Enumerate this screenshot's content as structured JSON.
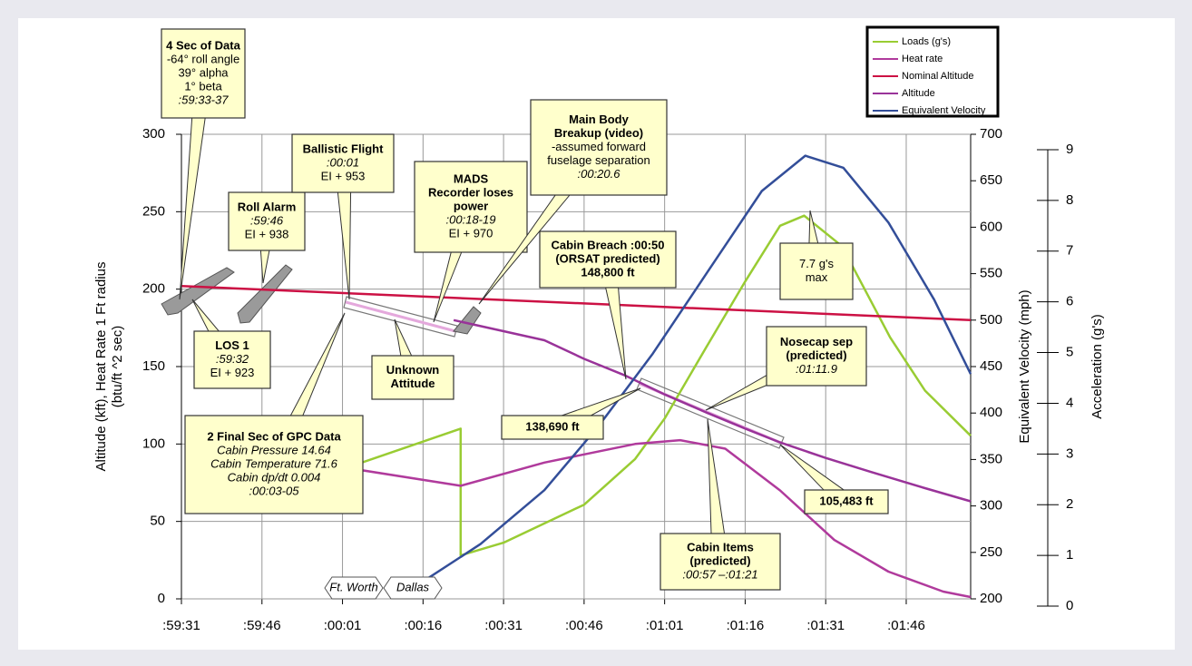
{
  "chart_data": {
    "type": "line",
    "grid": true,
    "legend": "top-right",
    "xlim": [
      0,
      147
    ],
    "xticks": [
      {
        "value": 0,
        "label": ":59:31"
      },
      {
        "value": 15,
        "label": ":59:46"
      },
      {
        "value": 30,
        "label": ":00:01"
      },
      {
        "value": 45,
        "label": ":00:16"
      },
      {
        "value": 60,
        "label": ":00:31"
      },
      {
        "value": 75,
        "label": ":00:46"
      },
      {
        "value": 90,
        "label": ":01:01"
      },
      {
        "value": 105,
        "label": ":01:16"
      },
      {
        "value": 120,
        "label": ":01:31"
      },
      {
        "value": 135,
        "label": ":01:46"
      }
    ],
    "y_label": [
      "Altitude (kft), Heat Rate 1 Ft radius",
      "(btu/ft ^2 sec)"
    ],
    "ylim": [
      0,
      300
    ],
    "yticks": [
      0,
      50,
      100,
      150,
      200,
      250,
      300
    ],
    "y2_label": "Equivalent Velocity (mph)",
    "y2lim": [
      200,
      700
    ],
    "y2ticks": [
      200,
      250,
      300,
      350,
      400,
      450,
      500,
      550,
      600,
      650,
      700
    ],
    "y3_label": "Acceleration (g's)",
    "y3lim": [
      0,
      9
    ],
    "y3ticks": [
      0,
      1,
      2,
      3,
      4,
      5,
      6,
      7,
      8,
      9
    ],
    "series": [
      {
        "name": "Loads (g's)",
        "color": "#99cc33",
        "axis": "y3",
        "x": [
          30,
          52,
          52,
          60,
          75,
          84.5,
          90,
          98,
          105,
          111.5,
          116,
          123,
          132,
          138.5,
          147
        ],
        "values": [
          2.7,
          3.5,
          1.0,
          1.25,
          2.0,
          2.9,
          3.7,
          5.15,
          6.4,
          7.5,
          7.7,
          7.1,
          5.3,
          4.25,
          3.36
        ]
      },
      {
        "name": "Heat rate",
        "color": "#b03a9c",
        "axis": "y",
        "x": [
          30,
          52,
          67.6,
          84.5,
          92.9,
          101.3,
          111.5,
          121.6,
          131.7,
          141.9,
          147
        ],
        "values": [
          85,
          73,
          88,
          100,
          102.5,
          97,
          70,
          38,
          17.6,
          4.7,
          1.2
        ]
      },
      {
        "name": "Nominal Altitude",
        "color": "#cc1144",
        "axis": "y",
        "x": [
          0,
          147
        ],
        "values": [
          202,
          180
        ]
      },
      {
        "name": "Altitude",
        "color": "#993399",
        "axis": "y",
        "x": [
          50.7,
          67.6,
          75,
          82.8,
          90,
          98,
          105,
          111.5,
          120,
          128.4,
          138.5,
          147
        ],
        "values": [
          180,
          167,
          155,
          144,
          132,
          120,
          110,
          101,
          91,
          82,
          71.5,
          63
        ]
      },
      {
        "name": "Equivalent Velocity",
        "color": "#334e99",
        "axis": "y2",
        "x": [
          45.6,
          55.7,
          67.6,
          77.7,
          87.8,
          98,
          108.1,
          116.2,
          123.3,
          131.7,
          140.2,
          147
        ],
        "values": [
          221,
          259,
          317,
          386,
          464,
          552,
          639,
          677,
          664,
          605,
          522,
          442
        ]
      }
    ],
    "annotations": [
      [
        "4 Sec of Data",
        "-64° roll angle",
        "39° alpha",
        "1° beta",
        ":59:33-37"
      ],
      [
        "Roll Alarm",
        ":59:46",
        "EI + 938"
      ],
      [
        "LOS 1",
        ":59:32",
        "EI + 923"
      ],
      [
        "Ballistic Flight",
        ":00:01",
        "EI + 953"
      ],
      [
        "MADS",
        "Recorder loses",
        "power",
        ":00:18-19",
        "EI + 970"
      ],
      [
        "Main Body",
        "Breakup (video)",
        "-assumed forward",
        "fuselage separation",
        ":00:20.6"
      ],
      [
        "Cabin Breach :00:50",
        "(ORSAT predicted)",
        "148,800 ft"
      ],
      [
        "7.7 g's",
        "max"
      ],
      [
        "Unknown",
        "Attitude"
      ],
      [
        "Nosecap sep",
        "(predicted)",
        ":01:11.9"
      ],
      [
        "2 Final Sec of GPC Data",
        "Cabin Pressure 14.64",
        "Cabin Temperature 71.6",
        "Cabin dp/dt 0.004",
        ":00:03-05"
      ],
      [
        "138,690 ft"
      ],
      [
        "105,483 ft"
      ],
      [
        "Cabin Items",
        "(predicted)",
        ":00:57 –:01:21"
      ],
      [
        "Ft. Worth"
      ],
      [
        "Dallas"
      ]
    ]
  }
}
